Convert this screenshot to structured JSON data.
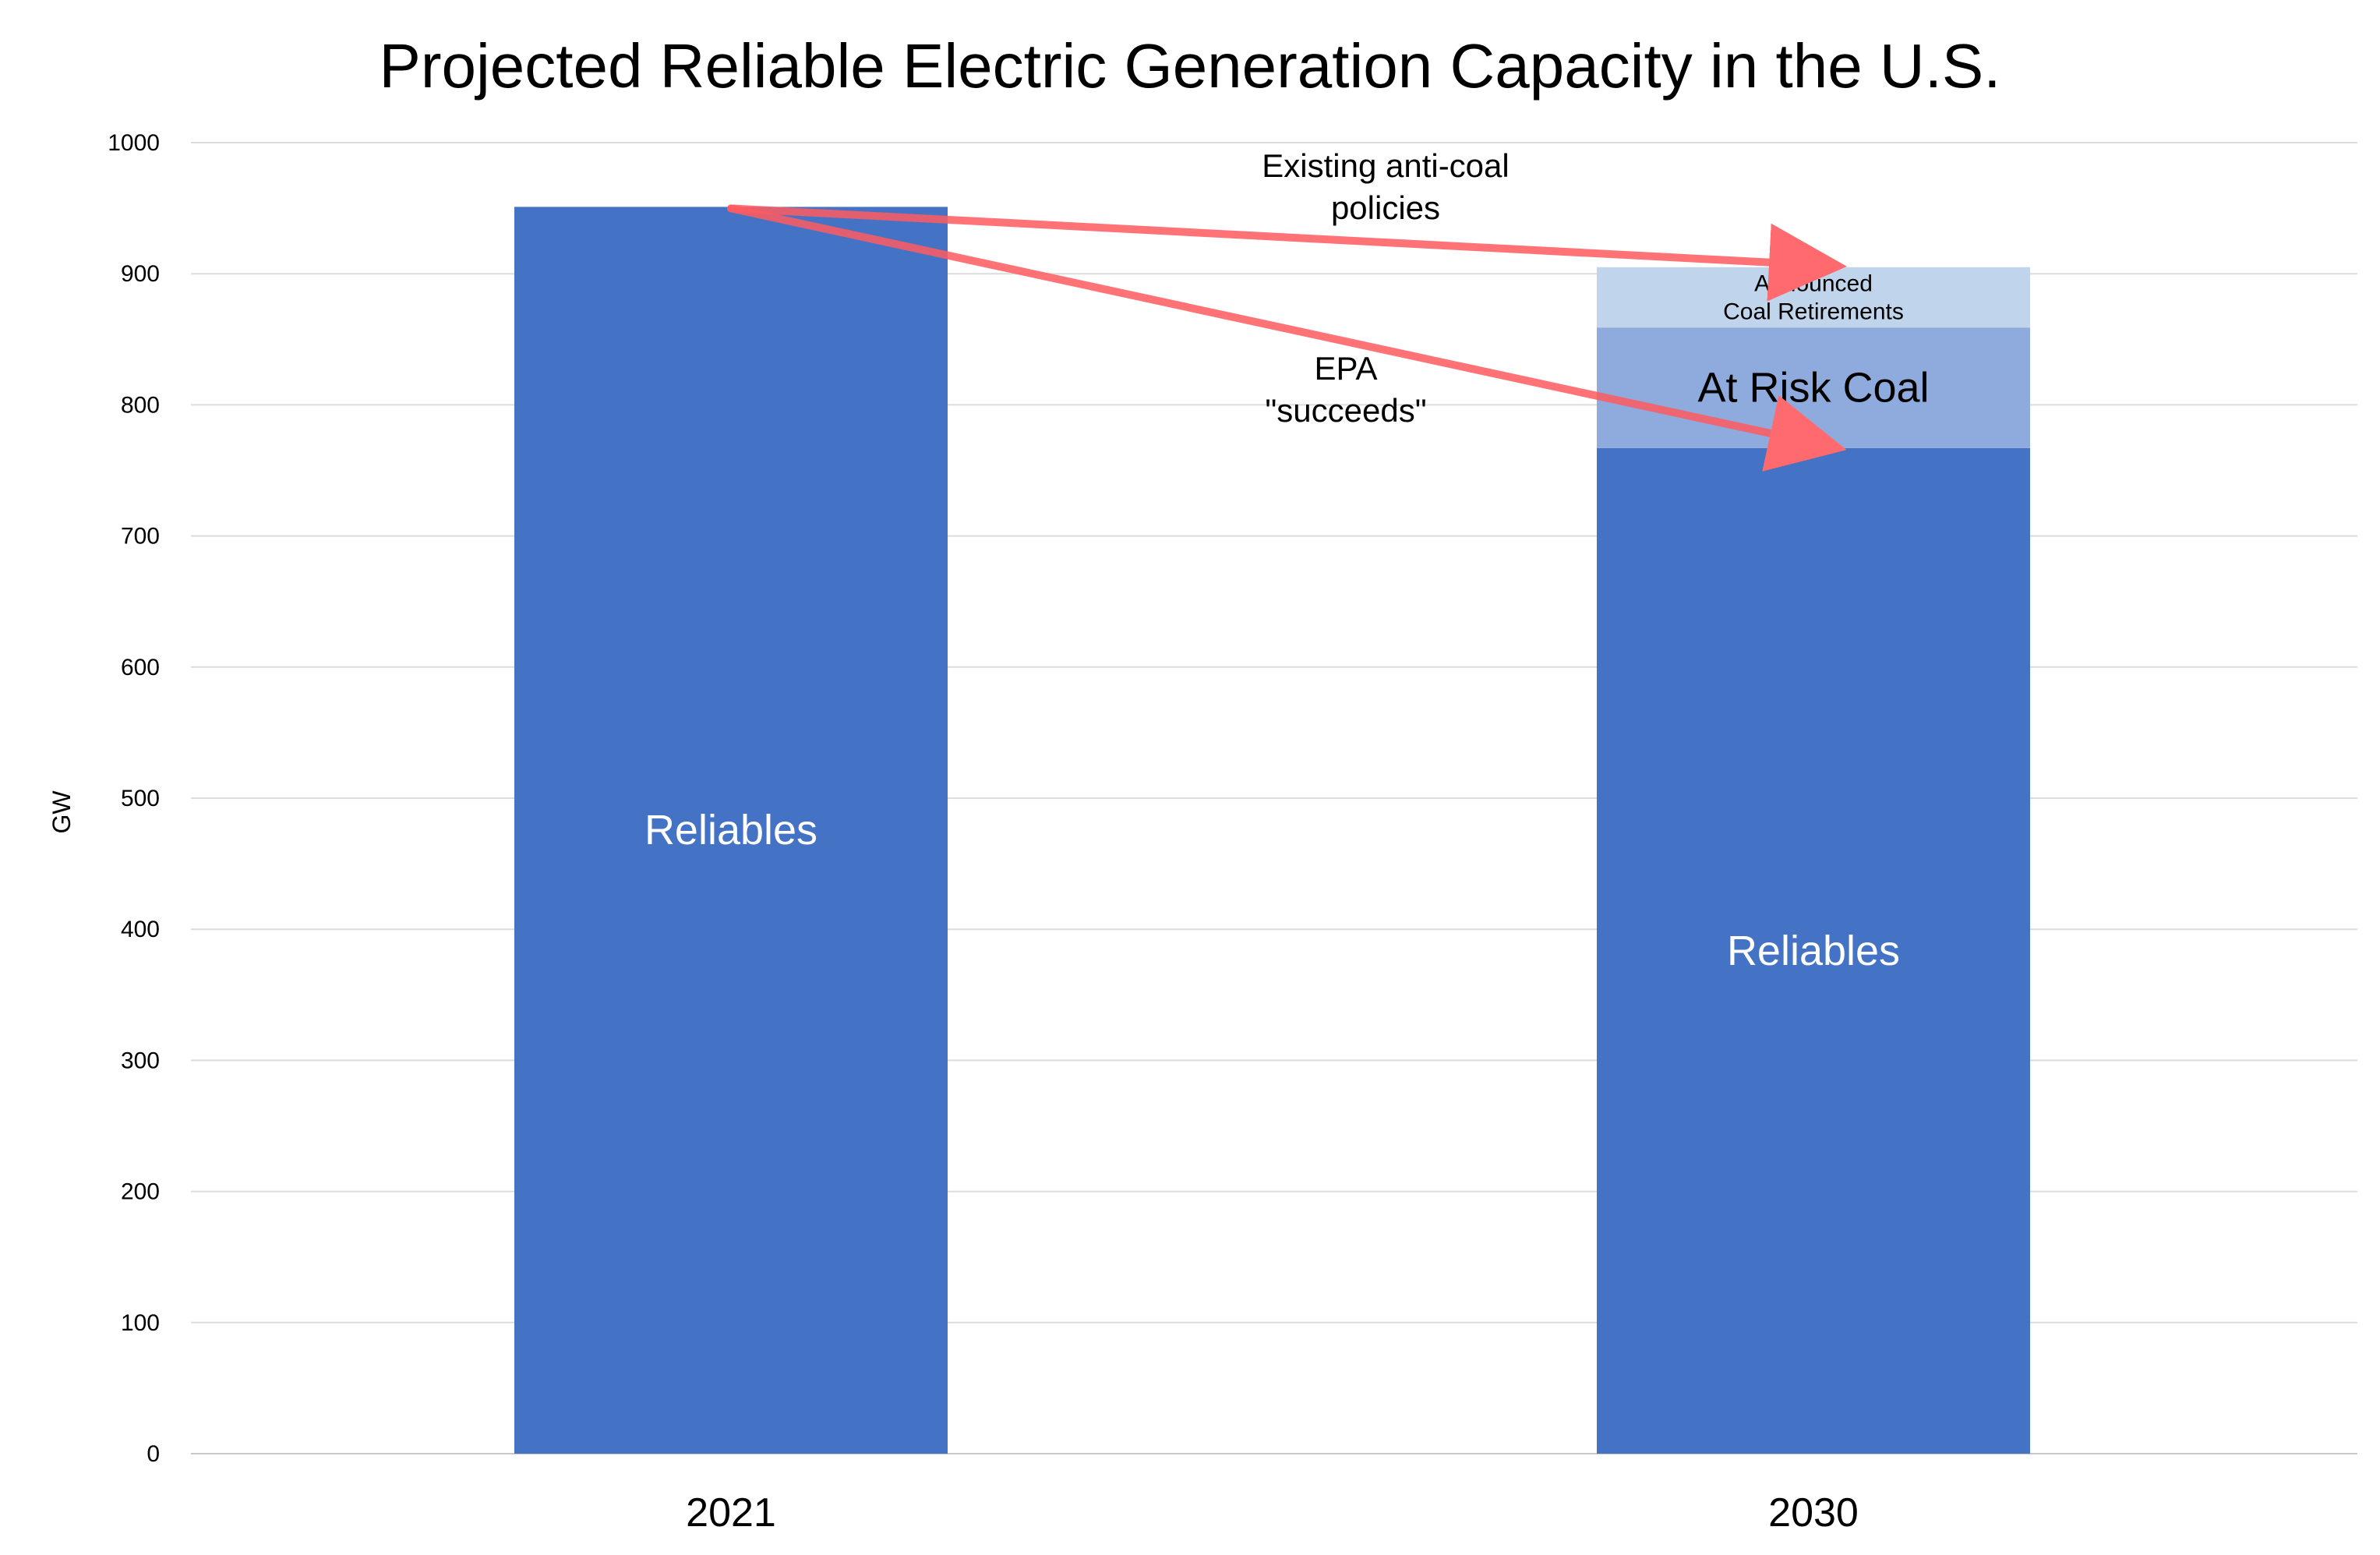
{
  "chart_data": {
    "type": "bar",
    "stacked": true,
    "title": "Projected Reliable Electric Generation Capacity in the U.S.",
    "ylabel": "GW",
    "xlabel": "",
    "ylim": [
      0,
      1000
    ],
    "yticks": [
      0,
      100,
      200,
      300,
      400,
      500,
      600,
      700,
      800,
      900,
      1000
    ],
    "grid": true,
    "legend": "none",
    "categories": [
      "2021",
      "2030"
    ],
    "series": [
      {
        "label": "Reliables",
        "values": [
          951,
          767
        ],
        "color": "#4472C4",
        "label_color": "#ffffff"
      },
      {
        "label": "At Risk Coal",
        "values": [
          0,
          92
        ],
        "color": "#8FAADC",
        "label_color": "#000000"
      },
      {
        "label": "Announced Coal Retirements",
        "label_lines": [
          "Announced",
          "Coal Retirements"
        ],
        "values": [
          0,
          46
        ],
        "color": "#C0D4EC",
        "label_color": "#000000"
      }
    ],
    "annotations": [
      {
        "lines": [
          "Existing anti-coal",
          "policies"
        ],
        "arrow_from": {
          "category": "2021",
          "value": 951
        },
        "arrow_to": {
          "category": "2030",
          "value": 905
        },
        "color": "#FF5A5F"
      },
      {
        "lines": [
          "EPA",
          "\"succeeds\""
        ],
        "arrow_from": {
          "category": "2021",
          "value": 951
        },
        "arrow_to": {
          "category": "2030",
          "value": 767
        },
        "color": "#FF5A5F"
      }
    ]
  }
}
